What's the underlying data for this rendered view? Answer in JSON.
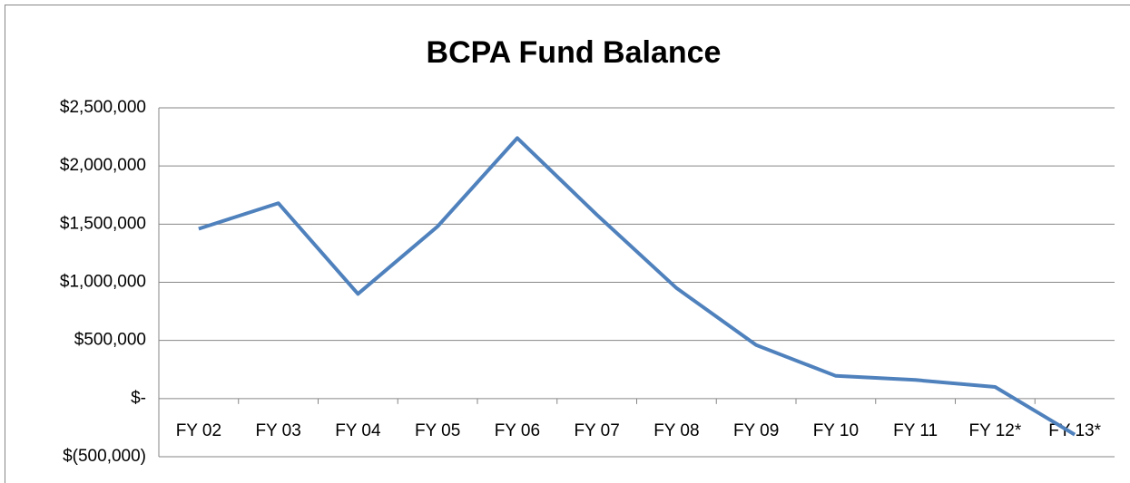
{
  "chart_data": {
    "type": "line",
    "title": "BCPA Fund Balance",
    "categories": [
      "FY 02",
      "FY 03",
      "FY 04",
      "FY 05",
      "FY 06",
      "FY 07",
      "FY 08",
      "FY 09",
      "FY 10",
      "FY 11",
      "FY 12*",
      "FY 13*"
    ],
    "values": [
      1460000,
      1680000,
      900000,
      1480000,
      2240000,
      1580000,
      950000,
      460000,
      195000,
      160000,
      100000,
      -310000
    ],
    "color": "#4f81bd",
    "ylim": [
      -500000,
      2500000
    ],
    "yticks": [
      {
        "value": -500000,
        "label": "$(500,000)"
      },
      {
        "value": 0,
        "label": "$-"
      },
      {
        "value": 500000,
        "label": "$500,000"
      },
      {
        "value": 1000000,
        "label": "$1,000,000"
      },
      {
        "value": 1500000,
        "label": "$1,500,000"
      },
      {
        "value": 2000000,
        "label": "$2,000,000"
      },
      {
        "value": 2500000,
        "label": "$2,500,000"
      }
    ],
    "grid": true
  }
}
